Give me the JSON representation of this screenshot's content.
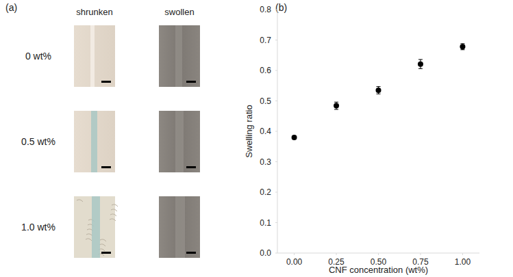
{
  "figure_a": {
    "label": "(a)",
    "columns": [
      "shrunken",
      "swollen"
    ],
    "rows": [
      "0 wt%",
      "0.5 wt%",
      "1.0 wt%"
    ]
  },
  "chart_data": {
    "type": "scatter",
    "title": "(b)",
    "x_label": "CNF concentration (wt%)",
    "y_label": "Swelling ratio",
    "x": [
      0,
      0.25,
      0.5,
      0.75,
      1.0
    ],
    "values": [
      0.38,
      0.484,
      0.535,
      0.621,
      0.678
    ],
    "errors": [
      0.005,
      0.012,
      0.012,
      0.015,
      0.01
    ],
    "color": "#000000",
    "marker": "circle",
    "xlim": [
      -0.1,
      1.1
    ],
    "xticks": [
      {
        "value": 0,
        "label": "0.00"
      },
      {
        "value": 0.25,
        "label": "0.25"
      },
      {
        "value": 0.5,
        "label": "0.50"
      },
      {
        "value": 0.75,
        "label": "0.75"
      },
      {
        "value": 1,
        "label": "1.00"
      }
    ],
    "ylim": [
      0,
      0.8
    ],
    "yticks": [
      {
        "value": 0,
        "label": "0.0"
      },
      0.1,
      0.2,
      0.3,
      0.4,
      0.5,
      0.6,
      0.7,
      0.8
    ],
    "grid": false
  }
}
